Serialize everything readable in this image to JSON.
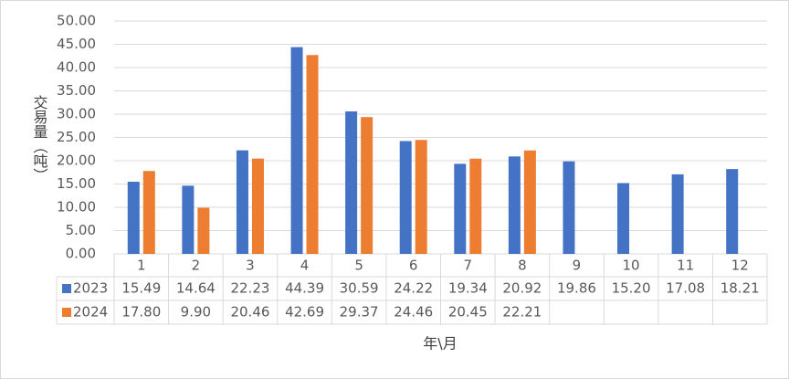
{
  "chart_data": {
    "type": "bar",
    "y_label": "交易量（吨）",
    "x_label": "年\\月",
    "categories": [
      "1",
      "2",
      "3",
      "4",
      "5",
      "6",
      "7",
      "8",
      "9",
      "10",
      "11",
      "12"
    ],
    "series": [
      {
        "name": "2023",
        "color": "#4472c4",
        "values": [
          15.49,
          14.64,
          22.23,
          44.39,
          30.59,
          24.22,
          19.34,
          20.92,
          19.86,
          15.2,
          17.08,
          18.21
        ],
        "value_labels": [
          "15.49",
          "14.64",
          "22.23",
          "44.39",
          "30.59",
          "24.22",
          "19.34",
          "20.92",
          "19.86",
          "15.20",
          "17.08",
          "18.21"
        ]
      },
      {
        "name": "2024",
        "color": "#ed7d31",
        "values": [
          17.8,
          9.9,
          20.46,
          42.69,
          29.37,
          24.46,
          20.45,
          22.21,
          null,
          null,
          null,
          null
        ],
        "value_labels": [
          "17.80",
          "9.90",
          "20.46",
          "42.69",
          "29.37",
          "24.46",
          "20.45",
          "22.21",
          null,
          null,
          null,
          null
        ]
      }
    ],
    "ylim": [
      0,
      50
    ],
    "yticks": [
      {
        "value": 0,
        "label": "0.00"
      },
      {
        "value": 5,
        "label": "5.00"
      },
      {
        "value": 10,
        "label": "10.00"
      },
      {
        "value": 15,
        "label": "15.00"
      },
      {
        "value": 20,
        "label": "20.00"
      },
      {
        "value": 25,
        "label": "25.00"
      },
      {
        "value": 30,
        "label": "30.00"
      },
      {
        "value": 35,
        "label": "35.00"
      },
      {
        "value": 40,
        "label": "40.00"
      },
      {
        "value": 45,
        "label": "45.00"
      },
      {
        "value": 50,
        "label": "50.00"
      }
    ],
    "grid": true,
    "data_table": true
  }
}
